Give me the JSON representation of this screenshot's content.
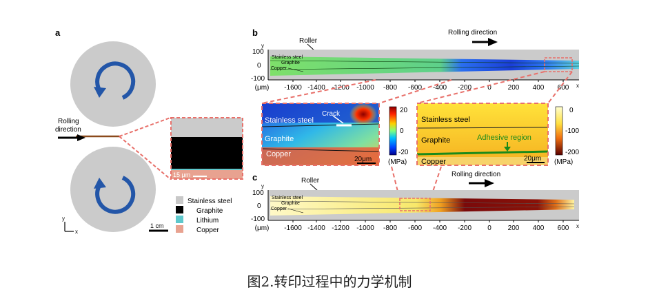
{
  "figure": {
    "caption": "图2.转印过程中的力学机制",
    "panel_a": {
      "label": "a",
      "rolling_direction": [
        "Rolling",
        "direction"
      ],
      "scale_small": "15 μm",
      "scale_large": "1 cm",
      "axis_x": "x",
      "axis_y": "y",
      "legend": [
        {
          "label": "Stainless steel",
          "color": "#c8c8c8"
        },
        {
          "label": "Graphite",
          "color": "#000000"
        },
        {
          "label": "Lithium",
          "color": "#5ec8cc"
        },
        {
          "label": "Copper",
          "color": "#e8a290"
        }
      ],
      "colors": {
        "roller": "#cbcbcb",
        "arrow": "#2356a8",
        "zoom_dash": "#e8706a",
        "foil": "#8b4a1c"
      }
    },
    "panel_b": {
      "label": "b",
      "roller_label": "Roller",
      "rolling_direction": "Rolling direction",
      "layer_labels": [
        "Stainless steel",
        "Graphite",
        "Copper"
      ],
      "x_ticks": [
        "(μm)",
        "-1600",
        "-1400",
        "-1200",
        "-1000",
        "-800",
        "-600",
        "-400",
        "-200",
        "0",
        "200",
        "400",
        "600"
      ],
      "x_axis": "x",
      "y_axis": "y",
      "y_ticks": [
        "100",
        "0",
        "-100"
      ]
    },
    "panel_c": {
      "label": "c",
      "roller_label": "Roller",
      "rolling_direction": "Rolling direction",
      "layer_labels": [
        "Stainless steel",
        "Graphite",
        "Copper"
      ],
      "x_ticks": [
        "(μm)",
        "-1600",
        "-1400",
        "-1200",
        "-1000",
        "-800",
        "-600",
        "-400",
        "-200",
        "0",
        "200",
        "400",
        "600"
      ],
      "x_axis": "x",
      "y_axis": "y",
      "y_ticks": [
        "100",
        "0",
        "-100"
      ]
    },
    "inset_left": {
      "labels": [
        "Crack",
        "Stainless steel",
        "Graphite",
        "Copper"
      ],
      "scale": "20μm",
      "colorbar_ticks": [
        "20",
        "0",
        "-20"
      ],
      "colorbar_unit": "(MPa)"
    },
    "inset_right": {
      "labels": [
        "Stainless steel",
        "Graphite",
        "Adhesive region",
        "Copper"
      ],
      "scale": "20μm",
      "colorbar_ticks": [
        "0",
        "-100",
        "-200"
      ],
      "colorbar_unit": "(MPa)"
    }
  }
}
